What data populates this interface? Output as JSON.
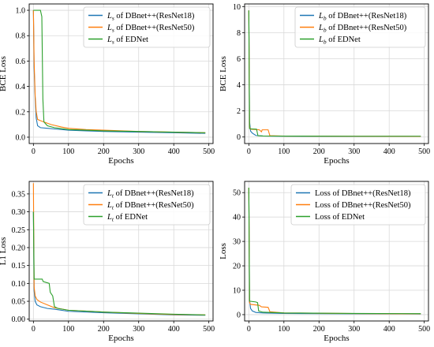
{
  "colors": {
    "resnet18": "#1f77b4",
    "resnet50": "#ff7f0e",
    "ednet": "#2ca02c",
    "grid": "#d9d9d9",
    "axis": "#000000",
    "legend_border": "#cccccc"
  },
  "chart_data": [
    {
      "type": "line",
      "xlabel": "Epochs",
      "ylabel": "BCE Loss",
      "xlim": [
        -12,
        512
      ],
      "ylim": [
        -0.05,
        1.05
      ],
      "xticks": [
        0,
        100,
        200,
        300,
        400,
        500
      ],
      "yticks": [
        0.0,
        0.2,
        0.4,
        0.6,
        0.8,
        1.0
      ],
      "ytick_labels": [
        "0.0",
        "0.2",
        "0.4",
        "0.6",
        "0.8",
        "1.0"
      ],
      "grid": true,
      "legend_position": "top-right",
      "series": [
        {
          "legend_sym": "L",
          "legend_sub": "s",
          "legend_rest": " of DBnet++(ResNet18)",
          "color_key": "resnet18",
          "points": [
            [
              0,
              1.0
            ],
            [
              2,
              0.55
            ],
            [
              5,
              0.3
            ],
            [
              8,
              0.15
            ],
            [
              12,
              0.09
            ],
            [
              20,
              0.075
            ],
            [
              40,
              0.07
            ],
            [
              60,
              0.065
            ],
            [
              100,
              0.055
            ],
            [
              150,
              0.05
            ],
            [
              200,
              0.045
            ],
            [
              300,
              0.04
            ],
            [
              400,
              0.035
            ],
            [
              490,
              0.03
            ]
          ]
        },
        {
          "legend_sym": "L",
          "legend_sub": "s",
          "legend_rest": " of DBnet++(ResNet50)",
          "color_key": "resnet50",
          "points": [
            [
              0,
              1.0
            ],
            [
              2,
              0.6
            ],
            [
              5,
              0.33
            ],
            [
              8,
              0.2
            ],
            [
              12,
              0.14
            ],
            [
              20,
              0.13
            ],
            [
              30,
              0.12
            ],
            [
              50,
              0.1
            ],
            [
              80,
              0.08
            ],
            [
              100,
              0.07
            ],
            [
              150,
              0.06
            ],
            [
              200,
              0.055
            ],
            [
              300,
              0.045
            ],
            [
              400,
              0.04
            ],
            [
              490,
              0.035
            ]
          ]
        },
        {
          "legend_sym": "L",
          "legend_sub": "s",
          "legend_rest": " of EDNet",
          "color_key": "ednet",
          "points": [
            [
              0,
              1.0
            ],
            [
              20,
              1.0
            ],
            [
              24,
              0.95
            ],
            [
              27,
              0.3
            ],
            [
              30,
              0.12
            ],
            [
              40,
              0.09
            ],
            [
              60,
              0.075
            ],
            [
              100,
              0.06
            ],
            [
              150,
              0.055
            ],
            [
              200,
              0.05
            ],
            [
              300,
              0.045
            ],
            [
              400,
              0.04
            ],
            [
              490,
              0.035
            ]
          ]
        }
      ]
    },
    {
      "type": "line",
      "xlabel": "Epochs",
      "ylabel": "BCE Loss",
      "xlim": [
        -12,
        512
      ],
      "ylim": [
        -0.5,
        10.2
      ],
      "xticks": [
        0,
        100,
        200,
        300,
        400,
        500
      ],
      "yticks": [
        0,
        2,
        4,
        6,
        8,
        10
      ],
      "ytick_labels": [
        "0",
        "2",
        "4",
        "6",
        "8",
        "10"
      ],
      "grid": true,
      "legend_position": "top-right",
      "series": [
        {
          "legend_sym": "L",
          "legend_sub": "b",
          "legend_rest": " of DBnet++(ResNet18)",
          "color_key": "resnet18",
          "points": [
            [
              0,
              9.7
            ],
            [
              2,
              1.2
            ],
            [
              5,
              0.45
            ],
            [
              10,
              0.3
            ],
            [
              20,
              0.12
            ],
            [
              40,
              0.08
            ],
            [
              100,
              0.06
            ],
            [
              300,
              0.05
            ],
            [
              490,
              0.05
            ]
          ]
        },
        {
          "legend_sym": "L",
          "legend_sub": "b",
          "legend_rest": " of DBnet++(ResNet50)",
          "color_key": "resnet50",
          "points": [
            [
              0,
              9.7
            ],
            [
              2,
              0.8
            ],
            [
              5,
              0.6
            ],
            [
              30,
              0.55
            ],
            [
              36,
              0.4
            ],
            [
              38,
              0.55
            ],
            [
              55,
              0.55
            ],
            [
              60,
              0.1
            ],
            [
              100,
              0.07
            ],
            [
              300,
              0.06
            ],
            [
              490,
              0.05
            ]
          ]
        },
        {
          "legend_sym": "L",
          "legend_sub": "b",
          "legend_rest": " of EDNet",
          "color_key": "ednet",
          "points": [
            [
              0,
              9.7
            ],
            [
              2,
              0.65
            ],
            [
              5,
              0.62
            ],
            [
              22,
              0.6
            ],
            [
              26,
              0.1
            ],
            [
              40,
              0.08
            ],
            [
              100,
              0.07
            ],
            [
              300,
              0.06
            ],
            [
              490,
              0.06
            ]
          ]
        }
      ]
    },
    {
      "type": "line",
      "xlabel": "Epochs",
      "ylabel": "L1 Loss",
      "xlim": [
        -12,
        512
      ],
      "ylim": [
        -0.005,
        0.385
      ],
      "xticks": [
        0,
        100,
        200,
        300,
        400,
        500
      ],
      "yticks": [
        0.0,
        0.05,
        0.1,
        0.15,
        0.2,
        0.25,
        0.3,
        0.35
      ],
      "ytick_labels": [
        "0.00",
        "0.05",
        "0.10",
        "0.15",
        "0.20",
        "0.25",
        "0.30",
        "0.35"
      ],
      "grid": true,
      "legend_position": "top-right",
      "series": [
        {
          "legend_sym": "L",
          "legend_sub": "t",
          "legend_rest": " of DBnet++(ResNet18)",
          "color_key": "resnet18",
          "points": [
            [
              0,
              0.3
            ],
            [
              2,
              0.08
            ],
            [
              5,
              0.05
            ],
            [
              10,
              0.04
            ],
            [
              20,
              0.035
            ],
            [
              40,
              0.03
            ],
            [
              60,
              0.028
            ],
            [
              100,
              0.022
            ],
            [
              200,
              0.018
            ],
            [
              300,
              0.015
            ],
            [
              400,
              0.012
            ],
            [
              490,
              0.011
            ]
          ]
        },
        {
          "legend_sym": "L",
          "legend_sub": "t",
          "legend_rest": " of DBnet++(ResNet50)",
          "color_key": "resnet50",
          "points": [
            [
              0,
              0.38
            ],
            [
              2,
              0.09
            ],
            [
              5,
              0.065
            ],
            [
              10,
              0.055
            ],
            [
              20,
              0.048
            ],
            [
              40,
              0.04
            ],
            [
              60,
              0.032
            ],
            [
              100,
              0.025
            ],
            [
              200,
              0.02
            ],
            [
              300,
              0.016
            ],
            [
              400,
              0.013
            ],
            [
              490,
              0.012
            ]
          ]
        },
        {
          "legend_sym": "L",
          "legend_sub": "t",
          "legend_rest": " of EDNet",
          "color_key": "ednet",
          "points": [
            [
              0,
              0.3
            ],
            [
              2,
              0.112
            ],
            [
              25,
              0.112
            ],
            [
              28,
              0.105
            ],
            [
              45,
              0.1
            ],
            [
              48,
              0.075
            ],
            [
              55,
              0.065
            ],
            [
              60,
              0.035
            ],
            [
              70,
              0.03
            ],
            [
              100,
              0.025
            ],
            [
              200,
              0.02
            ],
            [
              300,
              0.017
            ],
            [
              400,
              0.014
            ],
            [
              490,
              0.012
            ]
          ]
        }
      ]
    },
    {
      "type": "line",
      "xlabel": "Epochs",
      "ylabel": "Loss",
      "xlim": [
        -12,
        512
      ],
      "ylim": [
        -2.6,
        54.6
      ],
      "xticks": [
        0,
        100,
        200,
        300,
        400,
        500
      ],
      "yticks": [
        0,
        10,
        20,
        30,
        40,
        50
      ],
      "ytick_labels": [
        "0",
        "10",
        "20",
        "30",
        "40",
        "50"
      ],
      "grid": true,
      "legend_position": "top-right",
      "series": [
        {
          "legend_sym": "",
          "legend_sub": "",
          "legend_rest": "Loss of DBnet++(ResNet18)",
          "color_key": "resnet18",
          "points": [
            [
              0,
              52
            ],
            [
              2,
              6
            ],
            [
              5,
              2.5
            ],
            [
              10,
              1.5
            ],
            [
              20,
              0.9
            ],
            [
              40,
              0.7
            ],
            [
              100,
              0.5
            ],
            [
              300,
              0.35
            ],
            [
              490,
              0.3
            ]
          ]
        },
        {
          "legend_sym": "",
          "legend_sub": "",
          "legend_rest": "Loss of DBnet++(ResNet50)",
          "color_key": "resnet50",
          "points": [
            [
              0,
              52
            ],
            [
              2,
              5
            ],
            [
              5,
              4.2
            ],
            [
              30,
              3.8
            ],
            [
              36,
              3.2
            ],
            [
              55,
              3.0
            ],
            [
              60,
              1.2
            ],
            [
              100,
              0.7
            ],
            [
              300,
              0.45
            ],
            [
              490,
              0.35
            ]
          ]
        },
        {
          "legend_sym": "",
          "legend_sub": "",
          "legend_rest": "Loss of EDNet",
          "color_key": "ednet",
          "points": [
            [
              0,
              52
            ],
            [
              2,
              5.5
            ],
            [
              20,
              5.2
            ],
            [
              25,
              4.9
            ],
            [
              28,
              1.5
            ],
            [
              40,
              1.0
            ],
            [
              100,
              0.7
            ],
            [
              300,
              0.5
            ],
            [
              490,
              0.4
            ]
          ]
        }
      ]
    }
  ]
}
